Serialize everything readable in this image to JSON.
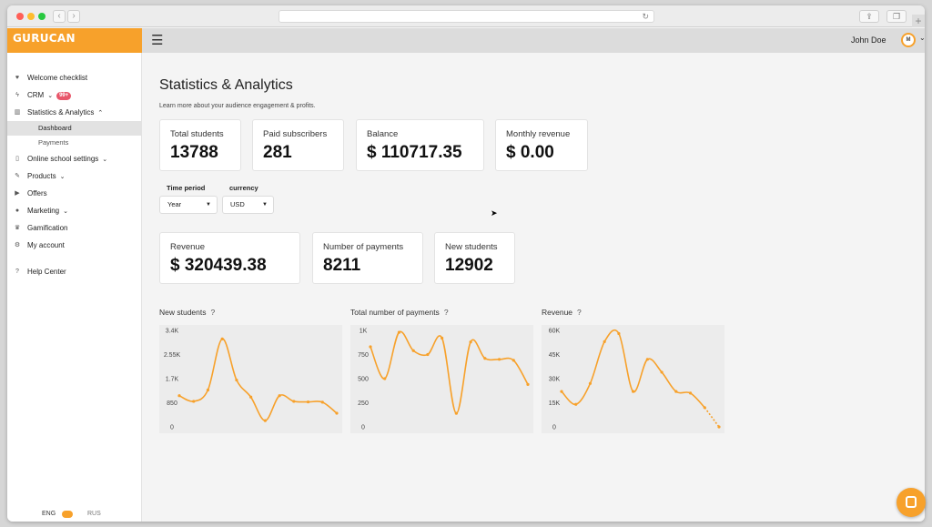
{
  "logo": {
    "text": "GURUCAN",
    "sub": ""
  },
  "header": {
    "user_name": "John Doe",
    "avatar_initial": "M"
  },
  "sidebar": {
    "items": [
      {
        "label": "Welcome checklist",
        "icon": "heart-icon"
      },
      {
        "label": "CRM",
        "icon": "bolt-icon",
        "badge": "99+"
      },
      {
        "label": "Statistics & Analytics",
        "icon": "chart-icon"
      },
      {
        "label": "Online school settings",
        "icon": "phone-icon"
      },
      {
        "label": "Products",
        "icon": "pencil-icon"
      },
      {
        "label": "Offers",
        "icon": "play-icon"
      },
      {
        "label": "Marketing",
        "icon": "chat-icon"
      },
      {
        "label": "Gamification",
        "icon": "trophy-icon"
      },
      {
        "label": "My account",
        "icon": "gear-icon"
      },
      {
        "label": "Help Center",
        "icon": "help-icon"
      }
    ],
    "subitems": [
      {
        "label": "Dashboard",
        "active": true
      },
      {
        "label": "Payments",
        "active": false
      }
    ],
    "lang": {
      "eng": "ENG",
      "rus": "RUS"
    }
  },
  "main": {
    "title": "Statistics & Analytics",
    "subtitle": "Learn more about your audience engagement & profits.",
    "summary_cards": [
      {
        "label": "Total students",
        "value": "13788"
      },
      {
        "label": "Paid subscribers",
        "value": "281"
      },
      {
        "label": "Balance",
        "value": "$ 110717.35"
      },
      {
        "label": "Monthly revenue",
        "value": "$ 0.00"
      }
    ],
    "filters": {
      "time_period": {
        "label": "Time period",
        "value": "Year"
      },
      "currency": {
        "label": "currency",
        "value": "USD"
      }
    },
    "period_cards": [
      {
        "label": "Revenue",
        "value": "$ 320439.38"
      },
      {
        "label": "Number of payments",
        "value": "8211"
      },
      {
        "label": "New students",
        "value": "12902"
      }
    ]
  },
  "colors": {
    "accent": "#f7a12b",
    "badge": "#e8566a"
  },
  "chart_data": [
    {
      "type": "line",
      "title": "New students",
      "yticks": [
        "3.4K",
        "2.55K",
        "1.7K",
        "850",
        "0"
      ],
      "ylim": [
        0,
        3400
      ],
      "values": [
        1100,
        900,
        1300,
        3100,
        1650,
        1050,
        220,
        1100,
        900,
        880,
        870,
        480
      ],
      "smooth": true
    },
    {
      "type": "line",
      "title": "Total number of payments",
      "yticks": [
        "1K",
        "750",
        "500",
        "250",
        "0"
      ],
      "ylim": [
        0,
        1000
      ],
      "values": [
        830,
        500,
        980,
        790,
        750,
        920,
        140,
        880,
        710,
        700,
        690,
        440
      ],
      "smooth": true
    },
    {
      "type": "line",
      "title": "Revenue",
      "yticks": [
        "60K",
        "45K",
        "30K",
        "15K",
        "0"
      ],
      "ylim": [
        0,
        60000
      ],
      "values": [
        22000,
        14000,
        27000,
        53000,
        58000,
        22000,
        42000,
        34000,
        22000,
        21000,
        12000,
        0
      ],
      "smooth": true,
      "last_segment_dashed": true
    }
  ]
}
